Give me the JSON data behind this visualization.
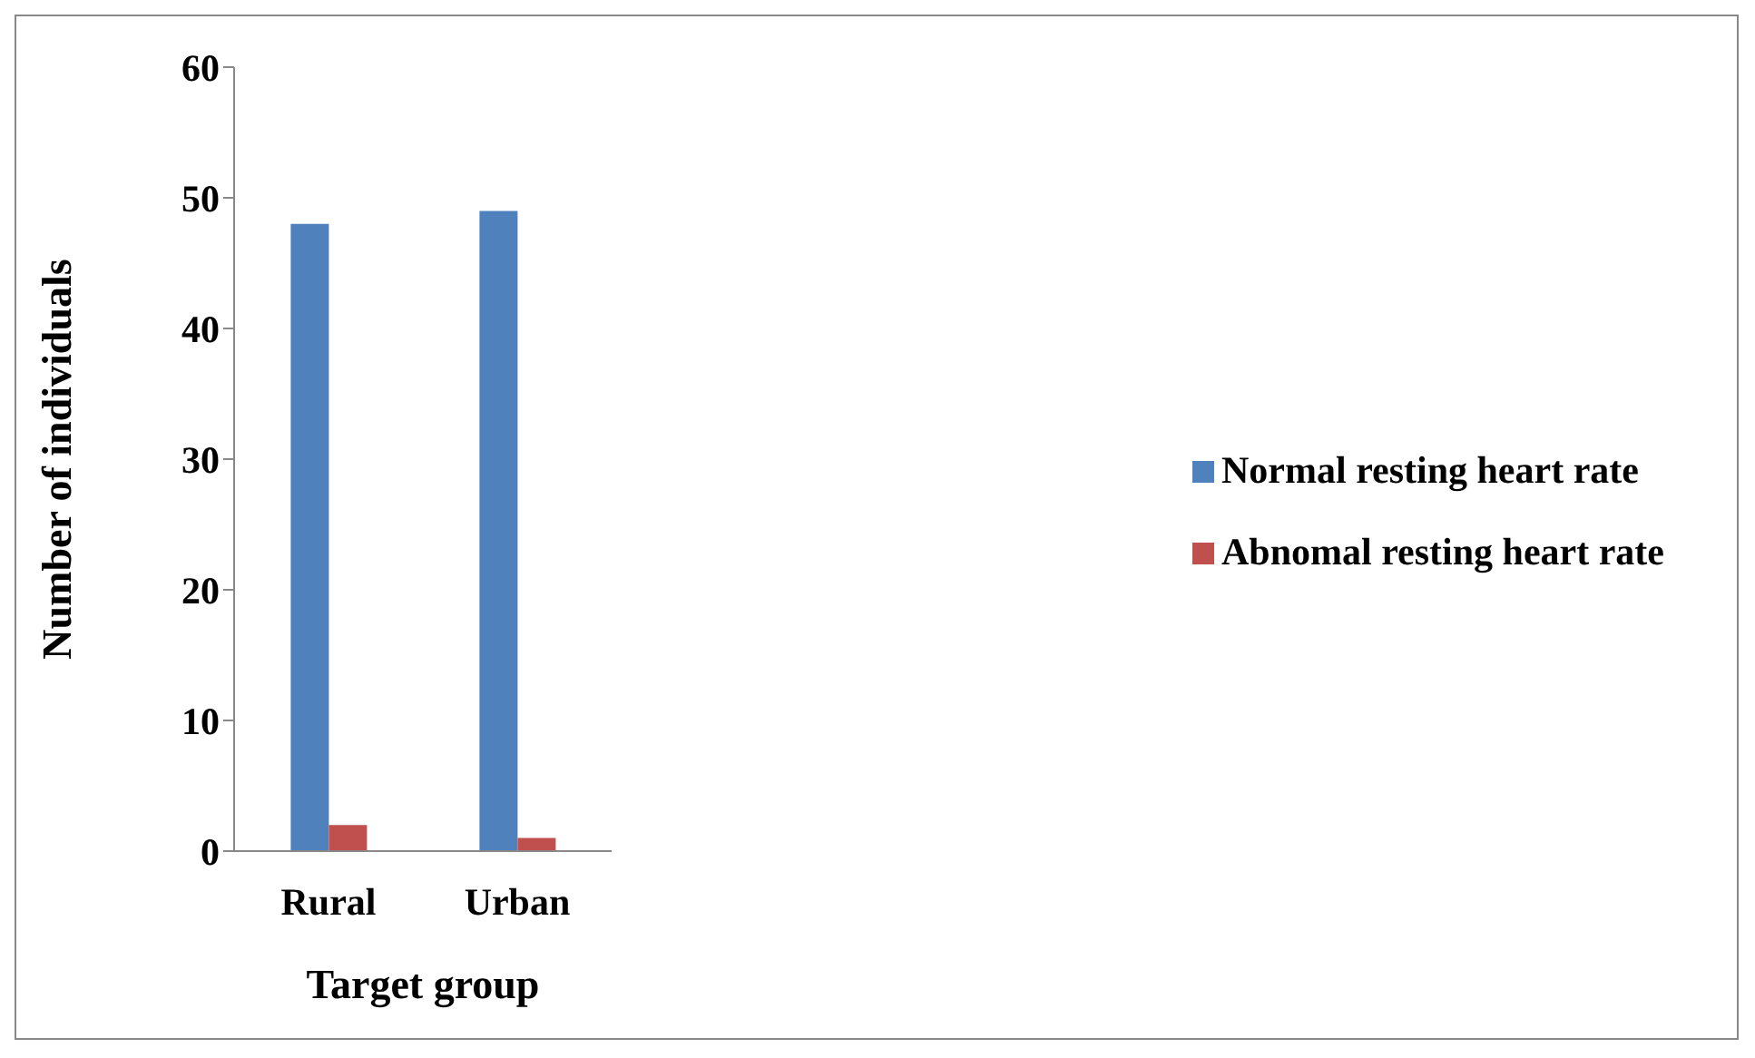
{
  "chart_data": {
    "type": "bar",
    "xlabel": "Target group",
    "ylabel": "Number of individuals",
    "categories": [
      "Rural",
      "Urban"
    ],
    "series": [
      {
        "name": "Normal resting heart rate",
        "color": "#4f81bd",
        "values": [
          48,
          49
        ]
      },
      {
        "name": "Abnomal resting heart rate",
        "color": "#c0504d",
        "values": [
          2,
          1
        ]
      }
    ],
    "ylim": [
      0,
      60
    ],
    "yticks": [
      0,
      10,
      20,
      30,
      40,
      50,
      60
    ],
    "grid": false,
    "legend": "right"
  }
}
